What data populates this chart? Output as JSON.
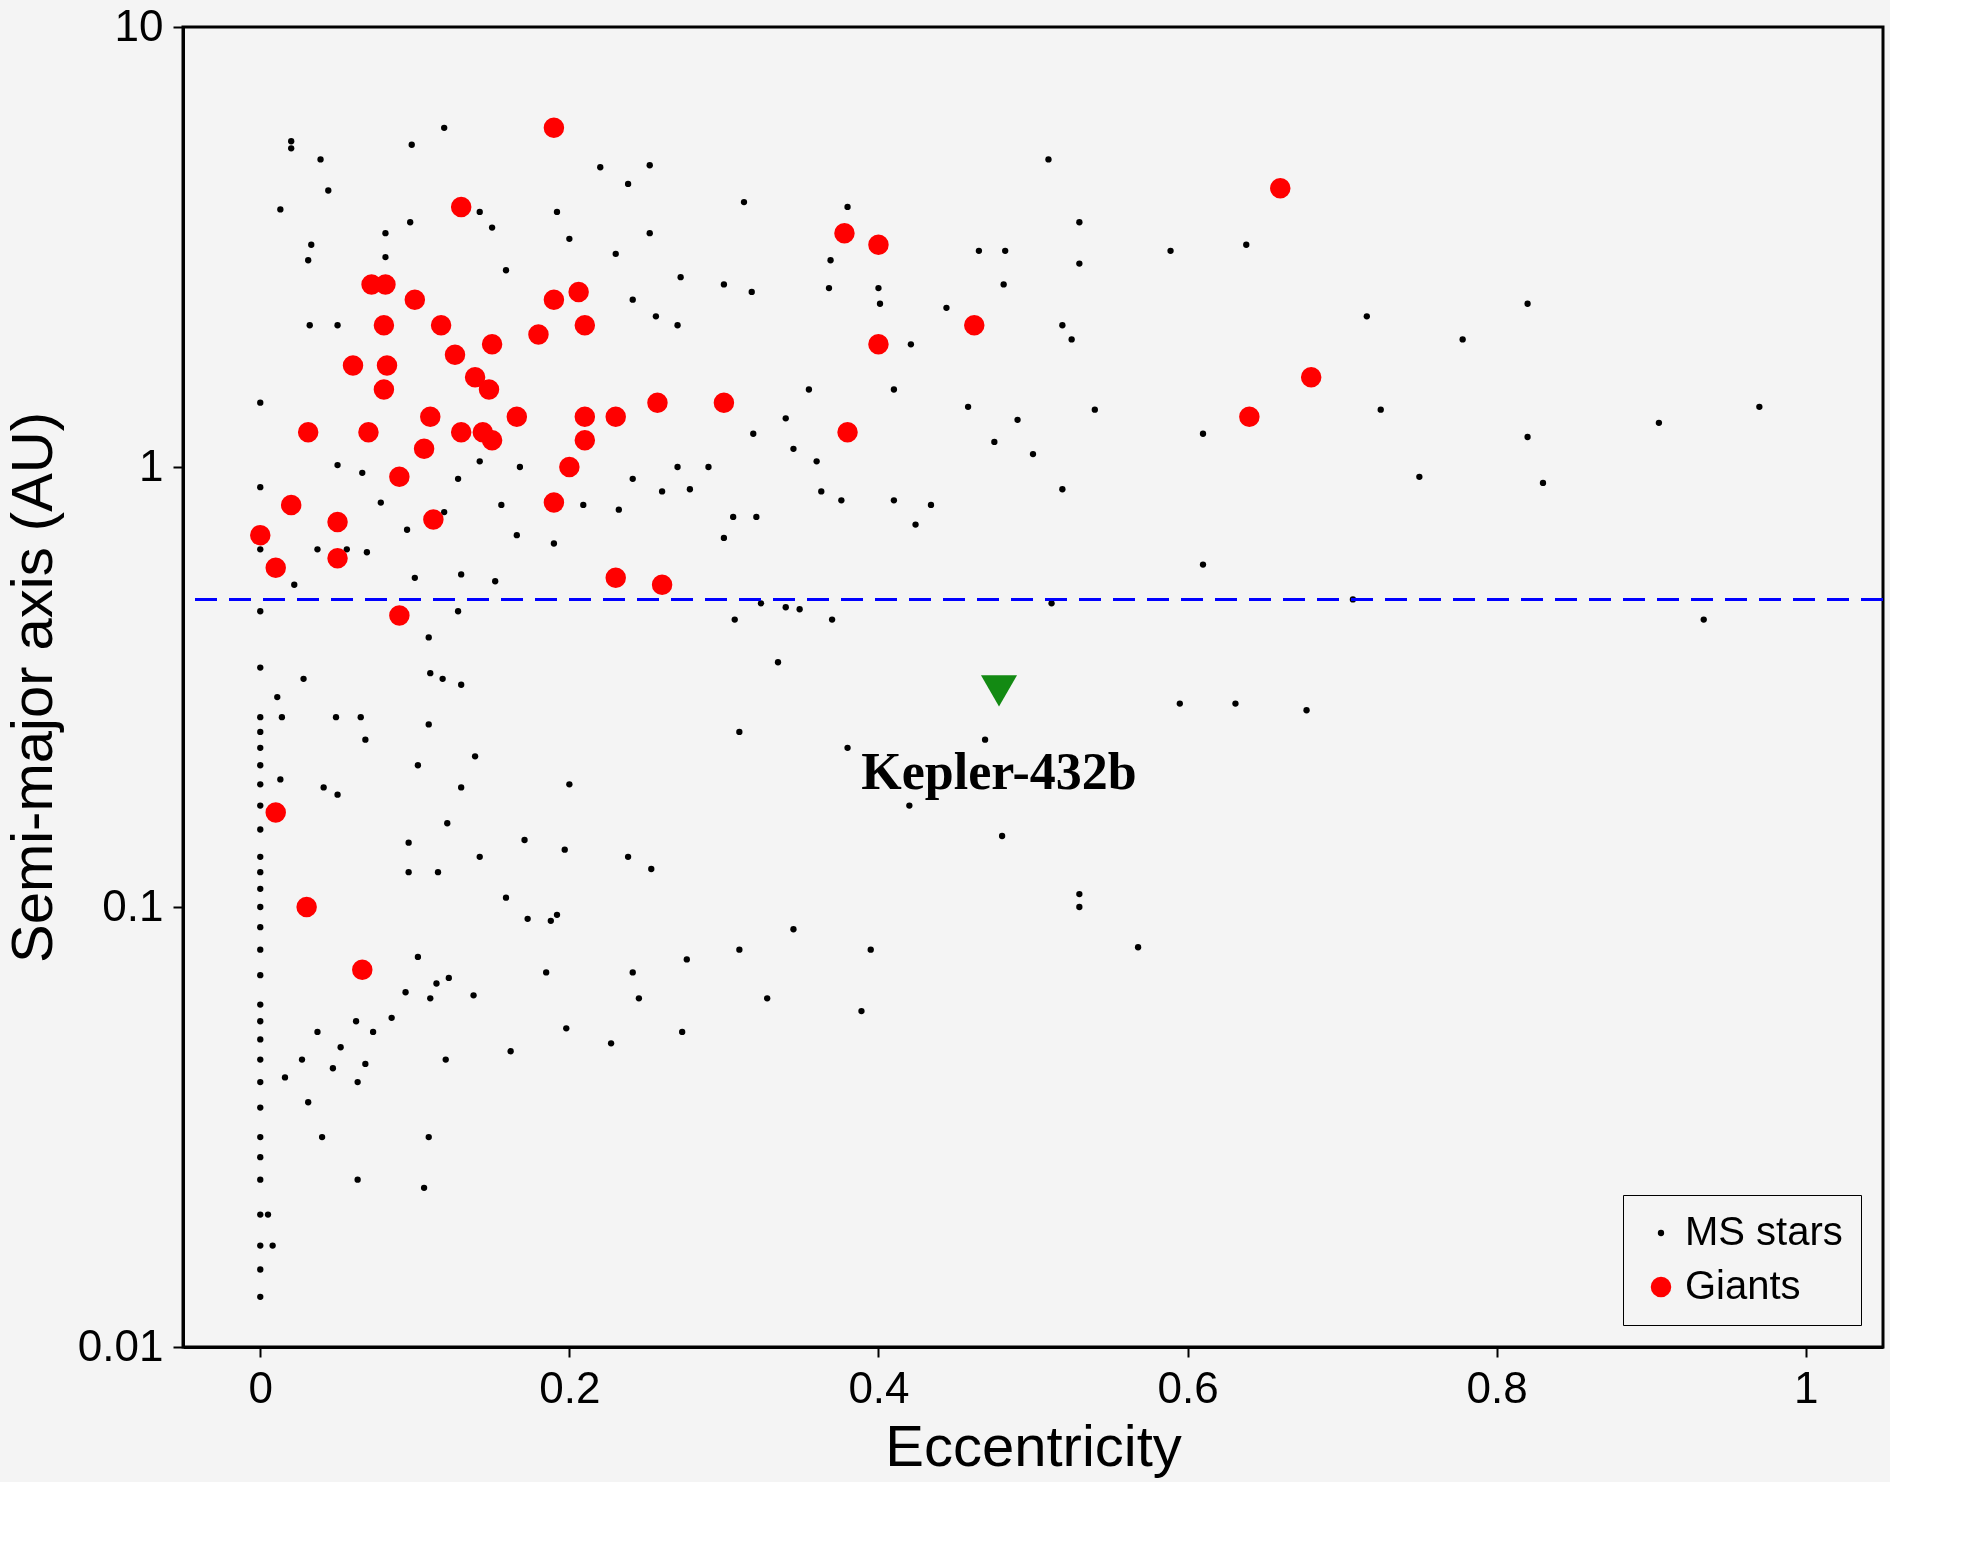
{
  "chart_data": {
    "type": "scatter",
    "xlabel": "Eccentricity",
    "ylabel": "Semi-major axis (AU)",
    "log": "y",
    "xlim": [
      -0.05,
      1.05
    ],
    "xticks": [
      0,
      0.2,
      0.4,
      0.6,
      0.8,
      1
    ],
    "ylim": [
      0.01,
      10
    ],
    "yticks": [
      0.01,
      0.1,
      1,
      10
    ],
    "legend": "bottom right",
    "series": [
      {
        "name": "MS stars",
        "color": "#000000",
        "marker": "circle",
        "x": [
          0,
          0,
          0,
          0,
          0,
          0,
          0,
          0,
          0,
          0,
          0,
          0,
          0,
          0,
          0,
          0,
          0,
          0,
          0,
          0,
          0,
          0,
          0,
          0,
          0,
          0,
          0,
          0,
          0,
          0,
          0,
          0,
          0.02,
          0.02,
          0.039,
          0.044,
          0.013,
          0.033,
          0.031,
          0.032,
          0.05,
          0.098,
          0.119,
          0.081,
          0.081,
          0.097,
          0.142,
          0.15,
          0.159,
          0.22,
          0.238,
          0.252,
          0.192,
          0.2,
          0.23,
          0.252,
          0.272,
          0.27,
          0.256,
          0.241,
          0.313,
          0.3,
          0.318,
          0.38,
          0.369,
          0.368,
          0.4,
          0.401,
          0.421,
          0.41,
          0.444,
          0.465,
          0.482,
          0.481,
          0.51,
          0.53,
          0.53,
          0.519,
          0.525,
          0.589,
          0.638,
          0.716,
          0.778,
          0.82,
          0.725,
          0.82,
          0.905,
          0.97,
          0.75,
          0.83,
          0.54,
          0.458,
          0.49,
          0.475,
          0.5,
          0.519,
          0.61,
          0.355,
          0.34,
          0.345,
          0.36,
          0.319,
          0.29,
          0.306,
          0.3,
          0.321,
          0.363,
          0.376,
          0.41,
          0.434,
          0.424,
          0.27,
          0.26,
          0.232,
          0.241,
          0.278,
          0.209,
          0.166,
          0.19,
          0.156,
          0.128,
          0.142,
          0.168,
          0.119,
          0.095,
          0.078,
          0.066,
          0.05,
          0.069,
          0.056,
          0.037,
          0.022,
          0.1,
          0.13,
          0.152,
          0.61,
          0.707,
          0.934,
          0.512,
          0.307,
          0.34,
          0.349,
          0.37,
          0.324,
          0.335,
          0.128,
          0.109,
          0.11,
          0.118,
          0.13,
          0.109,
          0.139,
          0.13,
          0.121,
          0.028,
          0.011,
          0.014,
          0.049,
          0.065,
          0.068,
          0.102,
          0.041,
          0.05,
          0.013,
          0.31,
          0.38,
          0.469,
          0.595,
          0.631,
          0.677,
          0.42,
          0.48,
          0.53,
          0.53,
          0.568,
          0.395,
          0.345,
          0.31,
          0.328,
          0.389,
          0.273,
          0.276,
          0.245,
          0.241,
          0.227,
          0.198,
          0.185,
          0.197,
          0.171,
          0.192,
          0.188,
          0.173,
          0.159,
          0.2,
          0.238,
          0.253,
          0.142,
          0.115,
          0.096,
          0.096,
          0.122,
          0.114,
          0.102,
          0.094,
          0.085,
          0.073,
          0.062,
          0.052,
          0.047,
          0.037,
          0.027,
          0.016,
          0.031,
          0.063,
          0.068,
          0.12,
          0.162,
          0.04,
          0.109,
          0.063,
          0.106,
          0.005,
          0.008,
          0.138,
          0.11
        ],
        "values": [
          1.4,
          0.9,
          0.65,
          0.47,
          0.35,
          0.27,
          0.25,
          0.23,
          0.21,
          0.19,
          0.17,
          0.15,
          0.13,
          0.12,
          0.11,
          0.1,
          0.09,
          0.08,
          0.07,
          0.06,
          0.055,
          0.05,
          0.045,
          0.04,
          0.035,
          0.03,
          0.027,
          0.024,
          0.02,
          0.017,
          0.015,
          0.013,
          5.5,
          5.3,
          5.0,
          4.25,
          3.85,
          3.2,
          2.95,
          2.1,
          2.1,
          5.4,
          5.9,
          3.4,
          3.0,
          3.6,
          3.8,
          3.5,
          2.8,
          4.8,
          4.4,
          4.85,
          3.8,
          3.3,
          3.05,
          3.4,
          2.7,
          2.1,
          2.2,
          2.4,
          4.0,
          2.6,
          2.5,
          3.9,
          2.95,
          2.55,
          2.55,
          2.35,
          1.9,
          1.5,
          2.3,
          3.1,
          3.1,
          2.6,
          5.0,
          3.6,
          2.9,
          2.1,
          1.95,
          3.1,
          3.2,
          2.2,
          1.95,
          2.35,
          1.35,
          1.17,
          1.26,
          1.37,
          0.95,
          0.92,
          1.35,
          1.37,
          1.28,
          1.14,
          1.07,
          0.89,
          1.19,
          1.5,
          1.29,
          1.1,
          1.03,
          1.19,
          1.0,
          0.77,
          0.69,
          0.77,
          0.88,
          0.84,
          0.84,
          0.82,
          0.74,
          1.0,
          0.88,
          0.8,
          0.94,
          0.89,
          0.82,
          0.7,
          0.67,
          0.82,
          0.94,
          1.03,
          1.0,
          0.79,
          0.72,
          0.83,
          0.97,
          1.01,
          0.64,
          0.65,
          0.65,
          0.54,
          0.56,
          0.57,
          0.55,
          0.6,
          0.5,
          0.45,
          0.49,
          0.45,
          0.48,
          0.475,
          0.45,
          0.49,
          0.36,
          0.47,
          0.41,
          0.34,
          0.33,
          0.32,
          0.26,
          0.22,
          0.187,
          0.155,
          0.33,
          0.3,
          0.27,
          0.27,
          0.27,
          0.24,
          0.21,
          0.187,
          0.18,
          0.195,
          0.25,
          0.23,
          0.24,
          0.29,
          0.29,
          0.28,
          0.17,
          0.145,
          0.107,
          0.1,
          0.081,
          0.08,
          0.089,
          0.08,
          0.062,
          0.058,
          0.052,
          0.076,
          0.062,
          0.071,
          0.049,
          0.053,
          0.071,
          0.135,
          0.142,
          0.096,
          0.093,
          0.094,
          0.105,
          0.19,
          0.13,
          0.122,
          0.13,
          0.12,
          0.14,
          0.12,
          0.069,
          0.067,
          0.077,
          0.064,
          0.056,
          0.052,
          0.055,
          0.048,
          0.043,
          0.052,
          0.045,
          0.041,
          0.036,
          0.04,
          0.044,
          0.045,
          0.047,
          0.03,
          0.03,
          0.024,
          0.023,
          0.02,
          0.017,
          0.063,
          0.062
        ]
      },
      {
        "name": "Giants",
        "color": "#ff0000",
        "marker": "circle",
        "x": [
          0.19,
          0.13,
          0.66,
          0.378,
          0.4,
          0.072,
          0.081,
          0.1,
          0.19,
          0.206,
          0.08,
          0.117,
          0.21,
          0.462,
          0.18,
          0.15,
          0.4,
          0.126,
          0.06,
          0.082,
          0.139,
          0.08,
          0.68,
          0.148,
          0.257,
          0.3,
          0.11,
          0.166,
          0.21,
          0.23,
          0.64,
          0.031,
          0.07,
          0.13,
          0.144,
          0.15,
          0.21,
          0.38,
          0.106,
          0.2,
          0.09,
          0.19,
          0.02,
          0.112,
          0.05,
          0.0,
          0.05,
          0.01,
          0.23,
          0.26,
          0.09,
          0.01,
          0.03,
          0.066
        ],
        "values": [
          5.9,
          3.9,
          4.3,
          3.4,
          3.2,
          2.6,
          2.6,
          2.4,
          2.4,
          2.5,
          2.1,
          2.1,
          2.1,
          2.1,
          2.0,
          1.9,
          1.9,
          1.8,
          1.7,
          1.7,
          1.6,
          1.5,
          1.6,
          1.5,
          1.4,
          1.4,
          1.3,
          1.3,
          1.3,
          1.3,
          1.3,
          1.2,
          1.2,
          1.2,
          1.2,
          1.15,
          1.15,
          1.2,
          1.1,
          1.0,
          0.95,
          0.83,
          0.82,
          0.76,
          0.75,
          0.7,
          0.62,
          0.59,
          0.56,
          0.54,
          0.46,
          0.164,
          0.1,
          0.072
        ]
      },
      {
        "color": "#138a13",
        "marker": "triangle",
        "x": [
          0.478
        ],
        "values": [
          0.31
        ]
      }
    ],
    "ref_lines": [
      {
        "axis": "y",
        "value": 0.5,
        "color": "#0000ff",
        "line_style": "dashed"
      }
    ],
    "annotations": [
      {
        "text": "Kepler-432b",
        "x": 0.478,
        "y": 0.31
      }
    ]
  }
}
